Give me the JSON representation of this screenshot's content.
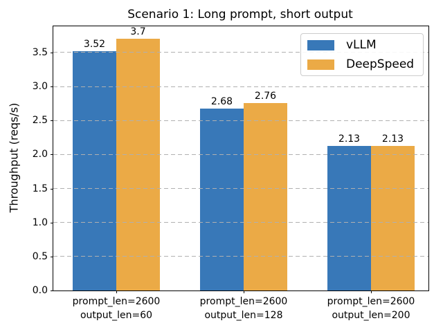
{
  "figure": {
    "background": "#ffffff",
    "frame_color": "#000000",
    "grid_color": "#b0b0b0"
  },
  "chart_data": {
    "type": "bar",
    "title": "Scenario 1: Long prompt, short output",
    "xlabel": "",
    "ylabel": "Throughput (reqs/s)",
    "categories": [
      "prompt_len=2600\noutput_len=60",
      "prompt_len=2600\noutput_len=128",
      "prompt_len=2600\noutput_len=200"
    ],
    "series": [
      {
        "name": "vLLM",
        "color": "#3878b8",
        "values": [
          3.52,
          2.68,
          2.13
        ],
        "labels": [
          "3.52",
          "2.68",
          "2.13"
        ]
      },
      {
        "name": "DeepSpeed",
        "color": "#ebaa46",
        "values": [
          3.7,
          2.76,
          2.13
        ],
        "labels": [
          "3.7",
          "2.76",
          "2.13"
        ]
      }
    ],
    "ylim": [
      0,
      3.885
    ],
    "yticks": [
      0.0,
      0.5,
      1.0,
      1.5,
      2.0,
      2.5,
      3.0,
      3.5
    ],
    "grid": {
      "axis": "y",
      "style": "dashed",
      "above_bars": true
    },
    "legend": {
      "position": "upper right"
    }
  }
}
